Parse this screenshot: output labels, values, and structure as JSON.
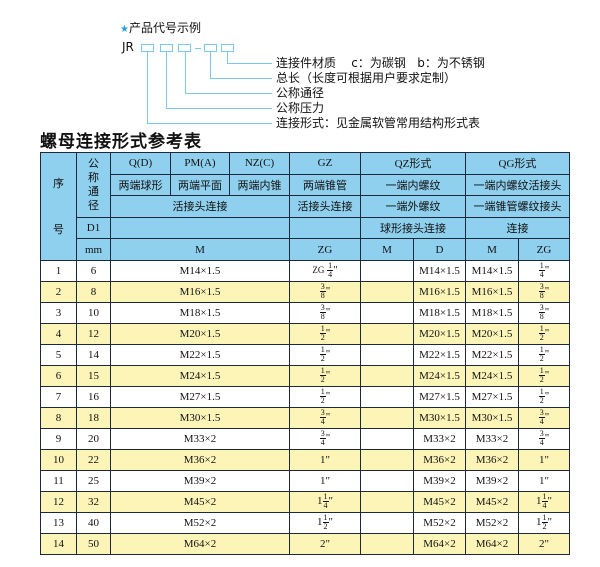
{
  "example": {
    "title": "产品代号示例",
    "code_prefix": "JR",
    "dash": "-",
    "labels": [
      "连接件材质    c：为碳钢   b：为不锈钢",
      "总长（长度可根据用户要求定制）",
      "公称通径",
      "公称压力",
      "连接形式：见金属软管常用结构形式表"
    ]
  },
  "table_title": "螺母连接形式参考表",
  "colors": {
    "header_bg": "#8fd0ee",
    "alt_row_bg": "#fdf4b8",
    "accent": "#7cc8e8"
  },
  "header": {
    "seq_top": "序",
    "seq_bottom": "号",
    "nominal": "公\n称\n通\n径",
    "d1": "D1",
    "mm": "mm",
    "q": "Q(D)",
    "pm": "PM(A)",
    "nz": "NZ(C)",
    "gz": "GZ",
    "qz": "QZ形式",
    "qg": "QG形式",
    "q_desc": "两端球形",
    "pm_desc": "两端平面",
    "nz_desc": "两端内锥",
    "gz_desc": "两端锥管",
    "qz_desc1": "一端内螺纹",
    "qg_desc1": "一端内螺纹活接头",
    "union": "活接头连接",
    "gz_union": "活接头连接",
    "qz_desc2": "一端外螺纹",
    "qg_desc2": "一端锥管螺纹接头",
    "qz_desc3": "球形接头连接",
    "qg_desc3": "连接",
    "m": "M",
    "zg": "ZG",
    "qz_m": "M",
    "qz_d": "D",
    "qg_m": "M",
    "qg_zg": "ZG"
  },
  "rows": [
    {
      "no": "1",
      "dn": "6",
      "m": "M14×1.5",
      "zg": {
        "pre": "ZG",
        "whole": "",
        "num": "1",
        "den": "4"
      },
      "qz_m": "",
      "qz_d": "M14×1.5",
      "qg_m": "M14×1.5",
      "qg_zg": {
        "whole": "",
        "num": "1",
        "den": "4"
      }
    },
    {
      "no": "2",
      "dn": "8",
      "m": "M16×1.5",
      "zg": {
        "whole": "",
        "num": "3",
        "den": "8"
      },
      "qz_m": "",
      "qz_d": "M16×1.5",
      "qg_m": "M16×1.5",
      "qg_zg": {
        "whole": "",
        "num": "3",
        "den": "8"
      }
    },
    {
      "no": "3",
      "dn": "10",
      "m": "M18×1.5",
      "zg": {
        "whole": "",
        "num": "3",
        "den": "8"
      },
      "qz_m": "",
      "qz_d": "M18×1.5",
      "qg_m": "M18×1.5",
      "qg_zg": {
        "whole": "",
        "num": "3",
        "den": "8"
      }
    },
    {
      "no": "4",
      "dn": "12",
      "m": "M20×1.5",
      "zg": {
        "whole": "",
        "num": "1",
        "den": "2"
      },
      "qz_m": "",
      "qz_d": "M20×1.5",
      "qg_m": "M20×1.5",
      "qg_zg": {
        "whole": "",
        "num": "1",
        "den": "2"
      }
    },
    {
      "no": "5",
      "dn": "14",
      "m": "M22×1.5",
      "zg": {
        "whole": "",
        "num": "1",
        "den": "2"
      },
      "qz_m": "",
      "qz_d": "M22×1.5",
      "qg_m": "M22×1.5",
      "qg_zg": {
        "whole": "",
        "num": "1",
        "den": "2"
      }
    },
    {
      "no": "6",
      "dn": "15",
      "m": "M24×1.5",
      "zg": {
        "whole": "",
        "num": "1",
        "den": "2"
      },
      "qz_m": "",
      "qz_d": "M24×1.5",
      "qg_m": "M24×1.5",
      "qg_zg": {
        "whole": "",
        "num": "1",
        "den": "2"
      }
    },
    {
      "no": "7",
      "dn": "16",
      "m": "M27×1.5",
      "zg": {
        "whole": "",
        "num": "1",
        "den": "2"
      },
      "qz_m": "",
      "qz_d": "M27×1.5",
      "qg_m": "M27×1.5",
      "qg_zg": {
        "whole": "",
        "num": "1",
        "den": "2"
      }
    },
    {
      "no": "8",
      "dn": "18",
      "m": "M30×1.5",
      "zg": {
        "whole": "",
        "num": "3",
        "den": "4"
      },
      "qz_m": "",
      "qz_d": "M30×1.5",
      "qg_m": "M30×1.5",
      "qg_zg": {
        "whole": "",
        "num": "3",
        "den": "4"
      }
    },
    {
      "no": "9",
      "dn": "20",
      "m": "M33×2",
      "zg": {
        "whole": "",
        "num": "3",
        "den": "4"
      },
      "qz_m": "",
      "qz_d": "M33×2",
      "qg_m": "M33×2",
      "qg_zg": {
        "whole": "",
        "num": "3",
        "den": "4"
      }
    },
    {
      "no": "10",
      "dn": "22",
      "m": "M36×2",
      "zg": {
        "whole": "1",
        "num": "",
        "den": ""
      },
      "qz_m": "",
      "qz_d": "M36×2",
      "qg_m": "M36×2",
      "qg_zg": {
        "whole": "1",
        "num": "",
        "den": ""
      }
    },
    {
      "no": "11",
      "dn": "25",
      "m": "M39×2",
      "zg": {
        "whole": "1",
        "num": "",
        "den": ""
      },
      "qz_m": "",
      "qz_d": "M39×2",
      "qg_m": "M39×2",
      "qg_zg": {
        "whole": "1",
        "num": "",
        "den": ""
      }
    },
    {
      "no": "12",
      "dn": "32",
      "m": "M45×2",
      "zg": {
        "whole": "1",
        "num": "1",
        "den": "4"
      },
      "qz_m": "",
      "qz_d": "M45×2",
      "qg_m": "M45×2",
      "qg_zg": {
        "whole": "1",
        "num": "1",
        "den": "4"
      }
    },
    {
      "no": "13",
      "dn": "40",
      "m": "M52×2",
      "zg": {
        "whole": "1",
        "num": "1",
        "den": "2"
      },
      "qz_m": "",
      "qz_d": "M52×2",
      "qg_m": "M52×2",
      "qg_zg": {
        "whole": "1",
        "num": "1",
        "den": "2"
      }
    },
    {
      "no": "14",
      "dn": "50",
      "m": "M64×2",
      "zg": {
        "whole": "2",
        "num": "",
        "den": ""
      },
      "qz_m": "",
      "qz_d": "M64×2",
      "qg_m": "M64×2",
      "qg_zg": {
        "whole": "2",
        "num": "",
        "den": ""
      }
    }
  ]
}
